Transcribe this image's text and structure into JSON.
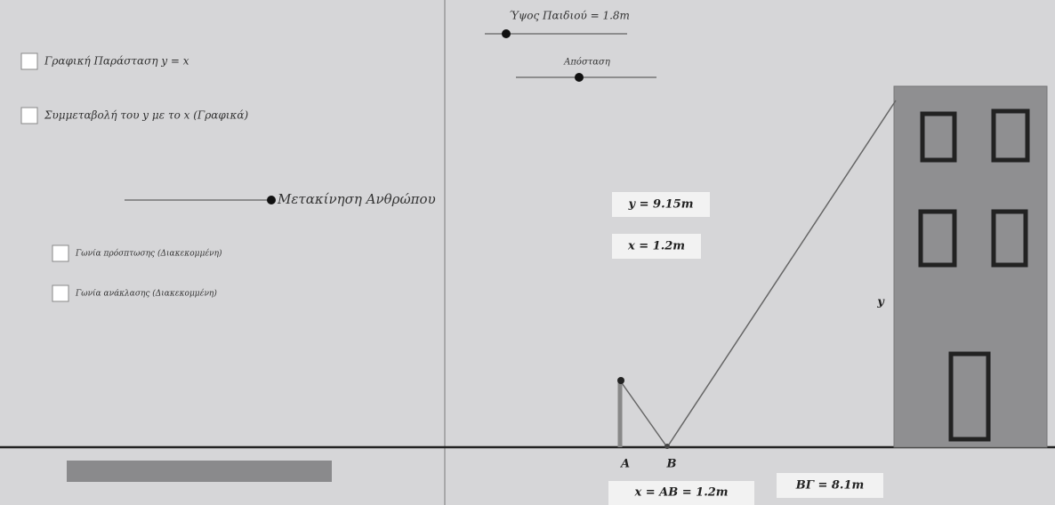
{
  "sliders": {
    "height_label": "Ύψος Παιδιού = 1.8m",
    "distance_label": "Απόσταση",
    "move_label": "Μετακίνηση Ανθρώπου"
  },
  "checkboxes": {
    "graph": "Γραφική Παράσταση y = x",
    "covariation": "Συμμεταβολή του y με το x (Γραφικά)",
    "incidence": "Γωνία πρόσπτωσης (Διακεκομμένη)",
    "reflection": "Γωνία ανάκλασης (Διακεκομμένη)"
  },
  "values": {
    "y": "y = 9.15m",
    "x": "x = 1.2m",
    "ab": "x = AB = 1.2m",
    "bg": "BΓ = 8.1m"
  },
  "points": {
    "a": "A",
    "b": "B",
    "building_side": "y"
  }
}
